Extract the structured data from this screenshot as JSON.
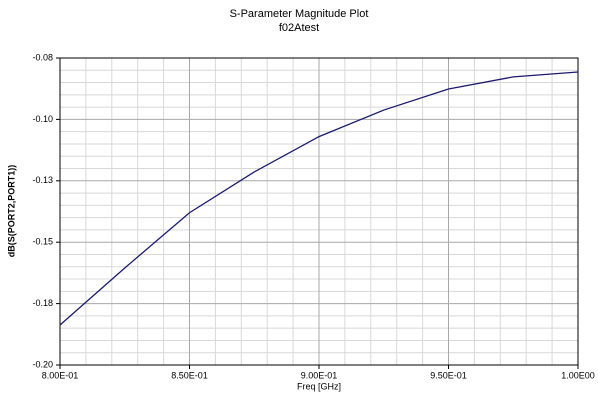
{
  "chart_data": {
    "type": "line",
    "title": "S-Parameter Magnitude Plot",
    "subtitle": "f02Atest",
    "x_label": "Freq [GHz]",
    "y_label": "dB(S(PORT2,PORT1))",
    "series": [
      {
        "name": "dB(S(PORT2,PORT1))",
        "color": "#1a1a6e",
        "x": [
          0.8,
          0.825,
          0.85,
          0.875,
          0.9,
          0.925,
          0.95,
          0.975,
          1.0
        ],
        "values": [
          -0.1837,
          -0.1605,
          -0.138,
          -0.1214,
          -0.107,
          -0.0962,
          -0.0876,
          -0.0827,
          -0.0807
        ]
      }
    ],
    "xlim": [
      0.8,
      1.0
    ],
    "xticks": [
      {
        "value": 0.8,
        "label": "8.00E-01"
      },
      {
        "value": 0.85,
        "label": "8.50E-01"
      },
      {
        "value": 0.9,
        "label": "9.00E-01"
      },
      {
        "value": 0.95,
        "label": "9.50E-01"
      },
      {
        "value": 1.0,
        "label": "1.00E00"
      }
    ],
    "ylim": [
      -0.2,
      -0.075
    ],
    "yticks": [
      {
        "value": -0.2,
        "label": "-0.20"
      },
      {
        "value": -0.175,
        "label": "-0.18"
      },
      {
        "value": -0.15,
        "label": "-0.15"
      },
      {
        "value": -0.125,
        "label": "-0.13"
      },
      {
        "value": -0.1,
        "label": "-0.10"
      },
      {
        "value": -0.075,
        "label": "-0.08"
      }
    ],
    "grid": true,
    "minor_grid": 5
  }
}
